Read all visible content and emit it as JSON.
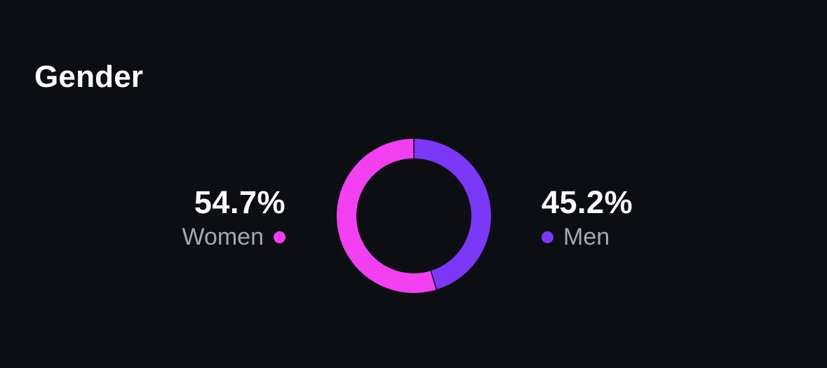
{
  "title": "Gender",
  "colors": {
    "background": "#0c0e13",
    "women": "#f23ff0",
    "men": "#7b38f7",
    "label_text": "#a5a8b3"
  },
  "chart_data": {
    "type": "pie",
    "title": "Gender",
    "donut": true,
    "series": [
      {
        "name": "Women",
        "value": 54.7,
        "label": "54.7%",
        "color": "#f23ff0"
      },
      {
        "name": "Men",
        "value": 45.2,
        "label": "45.2%",
        "color": "#7b38f7"
      }
    ]
  }
}
